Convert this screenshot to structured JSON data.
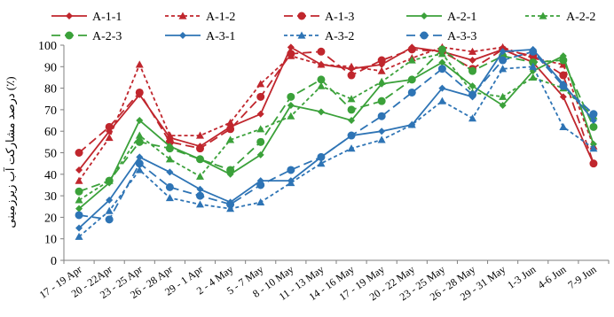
{
  "chart_data": {
    "type": "line",
    "ylabel": "درصد مشارکت آب زیرزمینی (٪)",
    "ylim": [
      0,
      100
    ],
    "yticks": [
      0,
      10,
      20,
      30,
      40,
      50,
      60,
      70,
      80,
      90,
      100
    ],
    "categories": [
      "17 - 19 Apr",
      "20 - 22Apr",
      "23 - 25 Apr",
      "26 - 28 Apr",
      "29 - 1 Apr",
      "2 - 4 May",
      "5 - 7 May",
      "8 - 10 May",
      "11 - 13 May",
      "14 - 16 May",
      "17 - 19 May",
      "20 - 22 May",
      "23 - 25 May",
      "26 - 28 May",
      "29 - 31 May",
      "1-3 Jun",
      "4-6 Jun",
      "7-9 Jun"
    ],
    "grid": false,
    "legend_position": "top",
    "series": [
      {
        "name": "A-1-1",
        "color": "#c0262d",
        "dash": "solid",
        "marker": "diamond",
        "values": [
          42,
          60,
          77,
          57,
          53,
          62,
          68,
          99,
          91,
          89,
          91,
          99,
          97,
          93,
          98,
          92,
          76,
          45
        ]
      },
      {
        "name": "A-1-2",
        "color": "#c0262d",
        "dash": "short",
        "marker": "triangle",
        "values": [
          37,
          57,
          91,
          58,
          58,
          64,
          82,
          95,
          91,
          90,
          88,
          94,
          99,
          97,
          99,
          94,
          91,
          53
        ]
      },
      {
        "name": "A-1-3",
        "color": "#c0262d",
        "dash": "long",
        "marker": "circle",
        "values": [
          50,
          62,
          78,
          55,
          52,
          61,
          76,
          96,
          97,
          86,
          93,
          98,
          97,
          89,
          98,
          95,
          86,
          45
        ]
      },
      {
        "name": "A-2-1",
        "color": "#3ba13a",
        "dash": "solid",
        "marker": "diamond",
        "values": [
          24,
          36,
          65,
          53,
          47,
          40,
          49,
          72,
          69,
          65,
          82,
          84,
          92,
          81,
          72,
          88,
          95,
          54
        ]
      },
      {
        "name": "A-2-2",
        "color": "#3ba13a",
        "dash": "short",
        "marker": "triangle",
        "values": [
          28,
          37,
          58,
          47,
          39,
          56,
          61,
          67,
          81,
          75,
          83,
          93,
          96,
          78,
          76,
          85,
          80,
          67
        ]
      },
      {
        "name": "A-2-3",
        "color": "#3ba13a",
        "dash": "long",
        "marker": "circle",
        "values": [
          32,
          37,
          55,
          52,
          47,
          42,
          55,
          76,
          84,
          70,
          74,
          84,
          98,
          88,
          95,
          92,
          93,
          62
        ]
      },
      {
        "name": "A-3-1",
        "color": "#2e74b5",
        "dash": "solid",
        "marker": "diamond",
        "values": [
          15,
          28,
          48,
          41,
          33,
          27,
          37,
          37,
          48,
          58,
          60,
          63,
          80,
          76,
          97,
          98,
          82,
          65
        ]
      },
      {
        "name": "A-3-2",
        "color": "#2e74b5",
        "dash": "short",
        "marker": "triangle",
        "values": [
          11,
          23,
          42,
          29,
          26,
          24,
          27,
          36,
          45,
          52,
          56,
          63,
          74,
          66,
          89,
          90,
          62,
          52
        ]
      },
      {
        "name": "A-3-3",
        "color": "#2e74b5",
        "dash": "long",
        "marker": "circle",
        "values": [
          21,
          19,
          45,
          34,
          30,
          26,
          35,
          42,
          48,
          58,
          67,
          78,
          89,
          77,
          93,
          97,
          81,
          68
        ]
      }
    ]
  }
}
